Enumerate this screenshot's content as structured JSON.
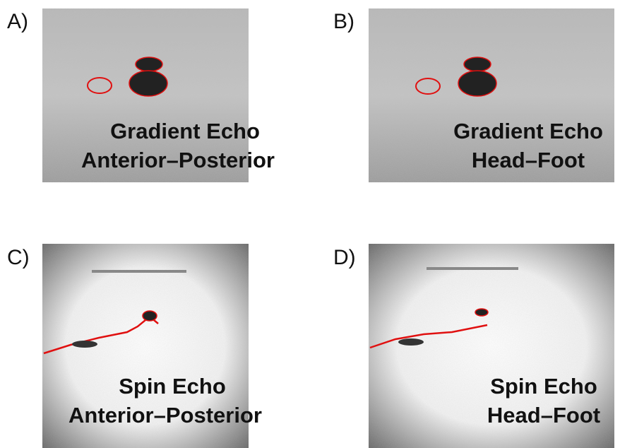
{
  "panels": [
    {
      "label": "A)",
      "lines": [
        "Gradient Echo",
        "Anterior–Posterior"
      ]
    },
    {
      "label": "B)",
      "lines": [
        "Gradient Echo",
        "Head–Foot"
      ]
    },
    {
      "label": "C)",
      "lines": [
        "Spin Echo",
        "Anterior–Posterior"
      ]
    },
    {
      "label": "D)",
      "lines": [
        "Spin Echo",
        "Head–Foot"
      ]
    }
  ]
}
